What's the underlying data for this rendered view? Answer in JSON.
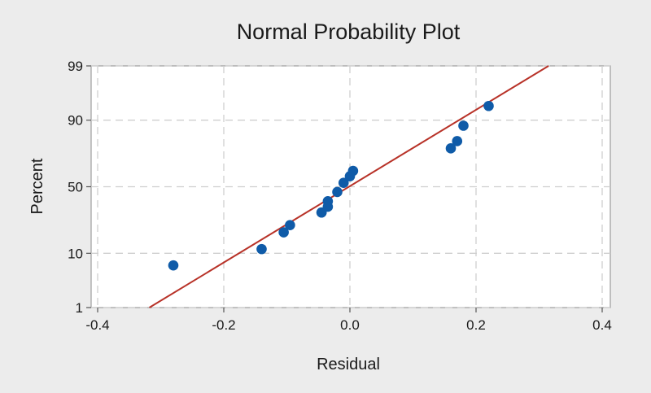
{
  "chart_data": {
    "type": "scatter",
    "title": "Normal Probability Plot",
    "xlabel": "Residual",
    "ylabel": "Percent",
    "xlim": [
      -0.4,
      0.4
    ],
    "x_ticks": [
      -0.4,
      -0.2,
      0.0,
      0.2,
      0.4
    ],
    "x_tick_labels": [
      "-0.4",
      "-0.2",
      "0.0",
      "0.2",
      "0.4"
    ],
    "y_scale": "normal-probability",
    "ylim": [
      1,
      99
    ],
    "y_ticks": [
      1,
      10,
      50,
      90,
      99
    ],
    "y_tick_labels": [
      "1",
      "10",
      "50",
      "90",
      "99"
    ],
    "grid": true,
    "points": [
      {
        "x": -0.28,
        "y": 6.5
      },
      {
        "x": -0.14,
        "y": 11.5
      },
      {
        "x": -0.105,
        "y": 19
      },
      {
        "x": -0.095,
        "y": 23
      },
      {
        "x": -0.045,
        "y": 31
      },
      {
        "x": -0.035,
        "y": 35
      },
      {
        "x": -0.035,
        "y": 39
      },
      {
        "x": -0.045,
        "y": 31
      },
      {
        "x": -0.02,
        "y": 46
      },
      {
        "x": -0.01,
        "y": 53
      },
      {
        "x": 0.0,
        "y": 58
      },
      {
        "x": 0.005,
        "y": 62
      },
      {
        "x": 0.16,
        "y": 77
      },
      {
        "x": 0.17,
        "y": 81
      },
      {
        "x": 0.18,
        "y": 88
      },
      {
        "x": 0.22,
        "y": 94
      }
    ],
    "fit_line": [
      {
        "x": -0.318,
        "y": 1
      },
      {
        "x": 0.315,
        "y": 99
      }
    ],
    "colors": {
      "points": "#0f5ba8",
      "fit_line": "#b83228",
      "grid": "#cfcfcf",
      "plot_bg": "#ffffff",
      "page_bg": "#ececec"
    }
  }
}
